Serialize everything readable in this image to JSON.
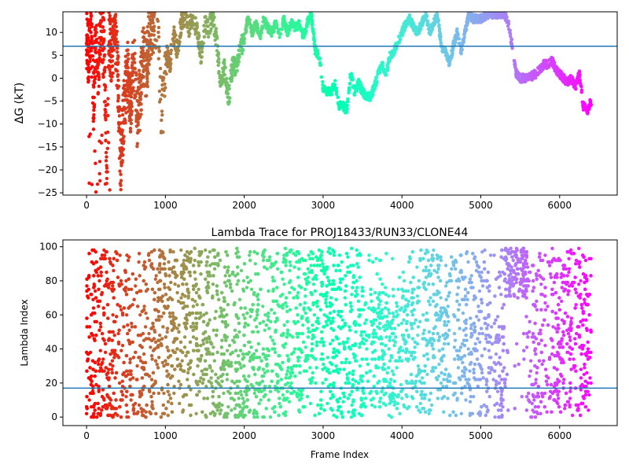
{
  "chart_data": [
    {
      "type": "scatter",
      "id": "top",
      "title": "",
      "xlabel": "",
      "ylabel": "ΔG (kT)",
      "xlim": [
        -300,
        6730
      ],
      "ylim": [
        -25.5,
        14.5
      ],
      "xticks": [
        0,
        1000,
        2000,
        3000,
        4000,
        5000,
        6000
      ],
      "yticks": [
        -25,
        -20,
        -15,
        -10,
        -5,
        0,
        5,
        10
      ],
      "hline": 7,
      "hline_color": "#1f77b4",
      "colormap": "rainbow",
      "x_max": 6400,
      "profile": [
        [
          0,
          8
        ],
        [
          30,
          5
        ],
        [
          60,
          10
        ],
        [
          90,
          -5
        ],
        [
          120,
          12
        ],
        [
          150,
          2
        ],
        [
          180,
          13
        ],
        [
          220,
          6
        ],
        [
          260,
          -22
        ],
        [
          280,
          10
        ],
        [
          320,
          5
        ],
        [
          360,
          12
        ],
        [
          400,
          0
        ],
        [
          430,
          -19
        ],
        [
          480,
          -5
        ],
        [
          520,
          2
        ],
        [
          560,
          -6
        ],
        [
          600,
          4
        ],
        [
          640,
          -8
        ],
        [
          680,
          -4
        ],
        [
          720,
          6
        ],
        [
          760,
          2
        ],
        [
          800,
          10
        ],
        [
          850,
          12
        ],
        [
          900,
          14
        ],
        [
          940,
          -6
        ],
        [
          980,
          -5
        ],
        [
          1020,
          5
        ],
        [
          1060,
          3
        ],
        [
          1100,
          10
        ],
        [
          1150,
          6
        ],
        [
          1200,
          12
        ],
        [
          1250,
          14
        ],
        [
          1300,
          11
        ],
        [
          1350,
          14
        ],
        [
          1400,
          10
        ],
        [
          1450,
          5
        ],
        [
          1500,
          12
        ],
        [
          1550,
          11
        ],
        [
          1600,
          14
        ],
        [
          1650,
          8
        ],
        [
          1700,
          -1
        ],
        [
          1750,
          2
        ],
        [
          1800,
          -5
        ],
        [
          1830,
          0
        ],
        [
          1860,
          3
        ],
        [
          1900,
          2
        ],
        [
          1950,
          7
        ],
        [
          2000,
          8
        ],
        [
          2050,
          14
        ],
        [
          2100,
          10
        ],
        [
          2150,
          12
        ],
        [
          2200,
          9
        ],
        [
          2250,
          13
        ],
        [
          2300,
          11
        ],
        [
          2350,
          10
        ],
        [
          2400,
          12
        ],
        [
          2450,
          9
        ],
        [
          2500,
          13
        ],
        [
          2550,
          10
        ],
        [
          2600,
          12
        ],
        [
          2650,
          11
        ],
        [
          2700,
          12
        ],
        [
          2750,
          9
        ],
        [
          2800,
          12
        ],
        [
          2850,
          14
        ],
        [
          2900,
          6
        ],
        [
          2950,
          5
        ],
        [
          3000,
          -2
        ],
        [
          3050,
          -3
        ],
        [
          3100,
          -3
        ],
        [
          3150,
          -1
        ],
        [
          3200,
          -6
        ],
        [
          3250,
          -6
        ],
        [
          3300,
          -7
        ],
        [
          3350,
          1
        ],
        [
          3400,
          -3
        ],
        [
          3450,
          -1
        ],
        [
          3500,
          -3
        ],
        [
          3550,
          -4
        ],
        [
          3600,
          -4
        ],
        [
          3650,
          -2
        ],
        [
          3700,
          1
        ],
        [
          3750,
          3
        ],
        [
          3800,
          1
        ],
        [
          3850,
          5
        ],
        [
          3900,
          6
        ],
        [
          3950,
          8
        ],
        [
          4000,
          10
        ],
        [
          4050,
          12
        ],
        [
          4100,
          13
        ],
        [
          4150,
          11
        ],
        [
          4200,
          10
        ],
        [
          4250,
          12
        ],
        [
          4300,
          14
        ],
        [
          4350,
          10
        ],
        [
          4400,
          12
        ],
        [
          4450,
          14
        ],
        [
          4500,
          7
        ],
        [
          4550,
          6
        ],
        [
          4600,
          3
        ],
        [
          4650,
          7
        ],
        [
          4700,
          10
        ],
        [
          4750,
          6
        ],
        [
          4800,
          10
        ],
        [
          4850,
          14
        ],
        [
          4900,
          13
        ],
        [
          5000,
          13
        ],
        [
          5100,
          14
        ],
        [
          5200,
          14
        ],
        [
          5300,
          14
        ],
        [
          5350,
          12
        ],
        [
          5400,
          7
        ],
        [
          5450,
          1
        ],
        [
          5500,
          0
        ],
        [
          5600,
          0
        ],
        [
          5700,
          1
        ],
        [
          5750,
          2
        ],
        [
          5800,
          3
        ],
        [
          5850,
          3
        ],
        [
          5900,
          4
        ],
        [
          5950,
          2
        ],
        [
          6000,
          1
        ],
        [
          6050,
          0
        ],
        [
          6100,
          -1
        ],
        [
          6150,
          0
        ],
        [
          6200,
          -2
        ],
        [
          6250,
          1
        ],
        [
          6300,
          -6
        ],
        [
          6350,
          -7
        ],
        [
          6400,
          -5
        ]
      ]
    },
    {
      "type": "scatter",
      "id": "bottom",
      "title": "Lambda Trace for PROJ18433/RUN33/CLONE44",
      "xlabel": "Frame Index",
      "ylabel": "Lambda Index",
      "xlim": [
        -300,
        6730
      ],
      "ylim": [
        -5,
        104
      ],
      "xticks": [
        0,
        1000,
        2000,
        3000,
        4000,
        5000,
        6000
      ],
      "yticks": [
        0,
        20,
        40,
        60,
        80,
        100
      ],
      "hline": 17,
      "hline_color": "#1f77b4",
      "colormap": "rainbow",
      "x_max": 6400,
      "lambda_range": [
        0,
        99
      ]
    }
  ]
}
